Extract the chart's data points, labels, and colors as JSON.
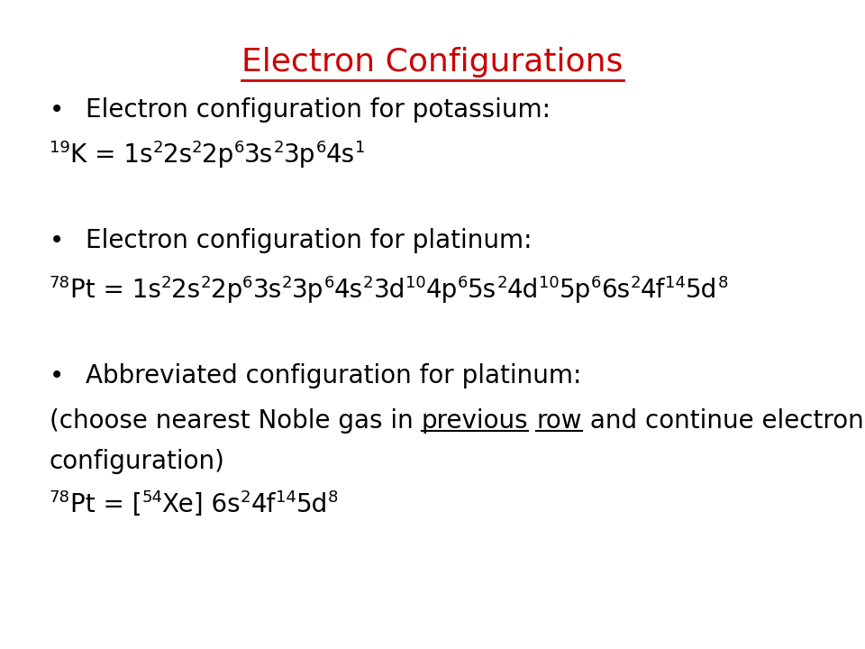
{
  "title": "Electron Configurations",
  "title_color": "#cc0000",
  "title_fontsize": 26,
  "background_color": "#ffffff",
  "text_color": "#000000",
  "body_fontsize": 20,
  "figsize": [
    9.6,
    7.2
  ],
  "dpi": 100,
  "bullet1_label": "Electron configuration for potassium:",
  "bullet2_label": "Electron configuration for platinum:",
  "bullet3_label": "Abbreviated configuration for platinum:",
  "paren_line1_pre": "(choose nearest Noble gas in ",
  "paren_prev": "previous",
  "paren_mid": " ",
  "paren_row": "row",
  "paren_line1_post": " and continue electron",
  "paren_line2": "configuration)",
  "potassium_parts": [
    [
      "19",
      true
    ],
    [
      "K = 1s",
      false
    ],
    [
      "2",
      true
    ],
    [
      "2s",
      false
    ],
    [
      "2",
      true
    ],
    [
      "2p",
      false
    ],
    [
      "6",
      true
    ],
    [
      "3s",
      false
    ],
    [
      "2",
      true
    ],
    [
      "3p",
      false
    ],
    [
      "6",
      true
    ],
    [
      "4s",
      false
    ],
    [
      "1",
      true
    ]
  ],
  "platinum_parts": [
    [
      "78",
      true
    ],
    [
      "Pt = 1s",
      false
    ],
    [
      "2",
      true
    ],
    [
      "2s",
      false
    ],
    [
      "2",
      true
    ],
    [
      "2p",
      false
    ],
    [
      "6",
      true
    ],
    [
      "3s",
      false
    ],
    [
      "2",
      true
    ],
    [
      "3p",
      false
    ],
    [
      "6",
      true
    ],
    [
      "4s",
      false
    ],
    [
      "2",
      true
    ],
    [
      "3d",
      false
    ],
    [
      "10",
      true
    ],
    [
      "4p",
      false
    ],
    [
      "6",
      true
    ],
    [
      "5s",
      false
    ],
    [
      "2",
      true
    ],
    [
      "4d",
      false
    ],
    [
      "10",
      true
    ],
    [
      "5p",
      false
    ],
    [
      "6",
      true
    ],
    [
      "6s",
      false
    ],
    [
      "2",
      true
    ],
    [
      "4f",
      false
    ],
    [
      "14",
      true
    ],
    [
      "5d",
      false
    ],
    [
      "8",
      true
    ]
  ],
  "abbrev_parts": [
    [
      "78",
      true
    ],
    [
      "Pt = [",
      false
    ],
    [
      "54",
      true
    ],
    [
      "Xe] 6s",
      false
    ],
    [
      "2",
      true
    ],
    [
      "4f",
      false
    ],
    [
      "14",
      true
    ],
    [
      "5d",
      false
    ],
    [
      "8",
      true
    ]
  ]
}
